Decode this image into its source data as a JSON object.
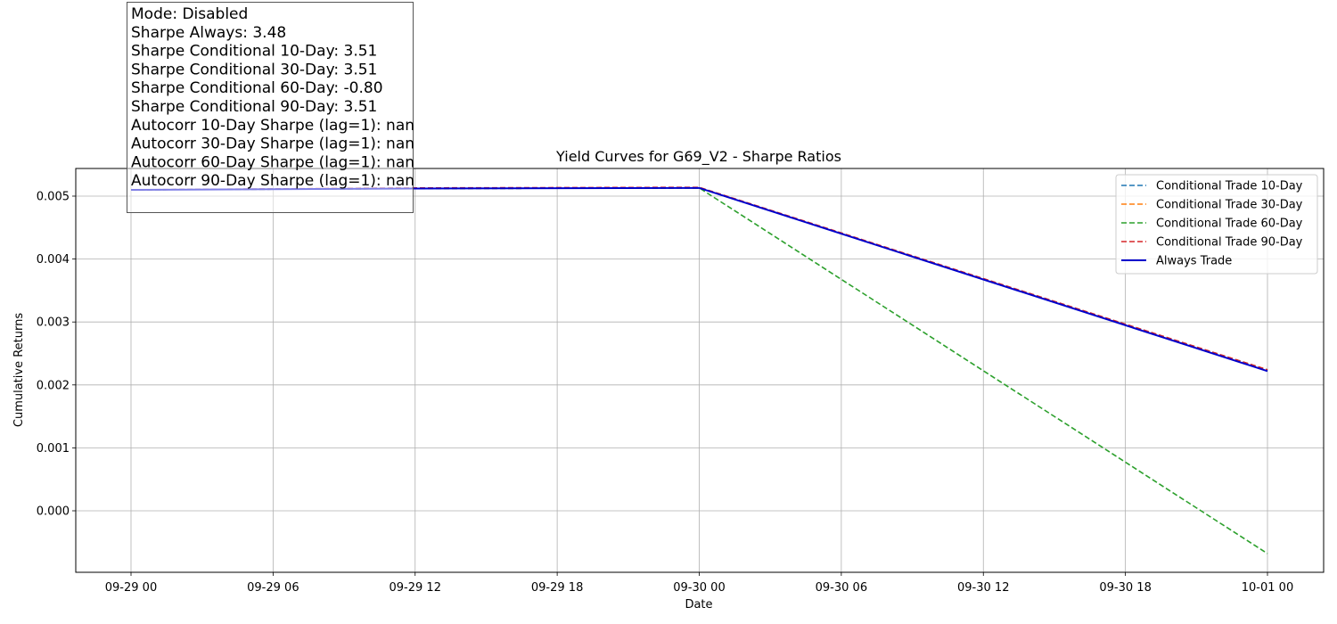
{
  "chart_data": {
    "type": "line",
    "title": "Yield Curves for G69_V2 - Sharpe Ratios",
    "xlabel": "Date",
    "ylabel": "Cumulative Returns",
    "x": [
      "2023-09-29 00:00",
      "2023-09-29 12:00",
      "2023-09-30 00:00",
      "2023-10-01 00:00"
    ],
    "x_ticks": [
      "09-29 00",
      "09-29 06",
      "09-29 12",
      "09-29 18",
      "09-30 00",
      "09-30 06",
      "09-30 12",
      "09-30 18",
      "10-01 00"
    ],
    "y_ticks": [
      "0.000",
      "0.001",
      "0.002",
      "0.003",
      "0.004",
      "0.005"
    ],
    "ylim": [
      -0.00068,
      0.00543
    ],
    "grid": true,
    "legend_position": "top-right",
    "series": [
      {
        "name": "Conditional Trade 10-Day",
        "color": "#1f77b4",
        "style": "dashed",
        "values": [
          0.0051,
          0.00512,
          0.00513,
          0.00224
        ]
      },
      {
        "name": "Conditional Trade 30-Day",
        "color": "#ff7f0e",
        "style": "dashed",
        "values": [
          0.0051,
          0.00512,
          0.00513,
          0.00224
        ]
      },
      {
        "name": "Conditional Trade 60-Day",
        "color": "#2ca02c",
        "style": "dashed",
        "values": [
          0.0051,
          0.00512,
          0.00513,
          -0.00068
        ]
      },
      {
        "name": "Conditional Trade 90-Day",
        "color": "#d62728",
        "style": "dashed",
        "values": [
          0.0051,
          0.00513,
          0.00514,
          0.00224
        ]
      },
      {
        "name": "Always Trade",
        "color": "#0000cc",
        "style": "solid",
        "values": [
          0.0051,
          0.00512,
          0.00513,
          0.00222
        ]
      }
    ],
    "annotation": {
      "lines": [
        "Mode: Disabled",
        "Sharpe Always: 3.48",
        "Sharpe Conditional 10-Day: 3.51",
        "Sharpe Conditional 30-Day: 3.51",
        "Sharpe Conditional 60-Day: -0.80",
        "Sharpe Conditional 90-Day: 3.51",
        "Autocorr 10-Day Sharpe (lag=1): nan",
        "Autocorr 30-Day Sharpe (lag=1): nan",
        "Autocorr 60-Day Sharpe (lag=1): nan",
        "Autocorr 90-Day Sharpe (lag=1): nan"
      ]
    }
  }
}
